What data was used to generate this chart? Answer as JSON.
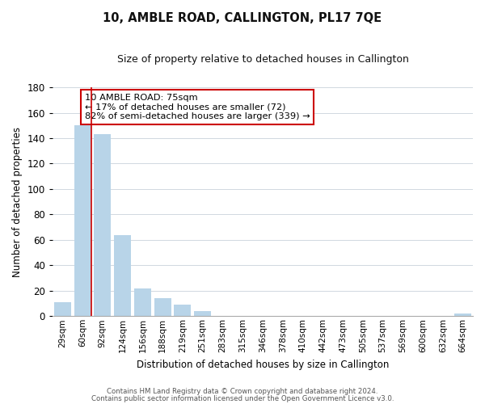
{
  "title": "10, AMBLE ROAD, CALLINGTON, PL17 7QE",
  "subtitle": "Size of property relative to detached houses in Callington",
  "xlabel": "Distribution of detached houses by size in Callington",
  "ylabel": "Number of detached properties",
  "bar_labels": [
    "29sqm",
    "60sqm",
    "92sqm",
    "124sqm",
    "156sqm",
    "188sqm",
    "219sqm",
    "251sqm",
    "283sqm",
    "315sqm",
    "346sqm",
    "378sqm",
    "410sqm",
    "442sqm",
    "473sqm",
    "505sqm",
    "537sqm",
    "569sqm",
    "600sqm",
    "632sqm",
    "664sqm"
  ],
  "bar_values": [
    11,
    150,
    143,
    64,
    22,
    14,
    9,
    4,
    0,
    0,
    0,
    0,
    0,
    0,
    0,
    0,
    0,
    0,
    0,
    0,
    2
  ],
  "bar_color": "#b8d4e8",
  "red_line_bar_index": 1,
  "ylim": [
    0,
    180
  ],
  "yticks": [
    0,
    20,
    40,
    60,
    80,
    100,
    120,
    140,
    160,
    180
  ],
  "annotation_title": "10 AMBLE ROAD: 75sqm",
  "annotation_line1": "← 17% of detached houses are smaller (72)",
  "annotation_line2": "82% of semi-detached houses are larger (339) →",
  "annotation_box_color": "#ffffff",
  "annotation_box_edge": "#cc0000",
  "footnote1": "Contains HM Land Registry data © Crown copyright and database right 2024.",
  "footnote2": "Contains public sector information licensed under the Open Government Licence v3.0.",
  "grid_color": "#d0d8e0",
  "background_color": "#ffffff",
  "fig_width": 6.0,
  "fig_height": 5.0
}
